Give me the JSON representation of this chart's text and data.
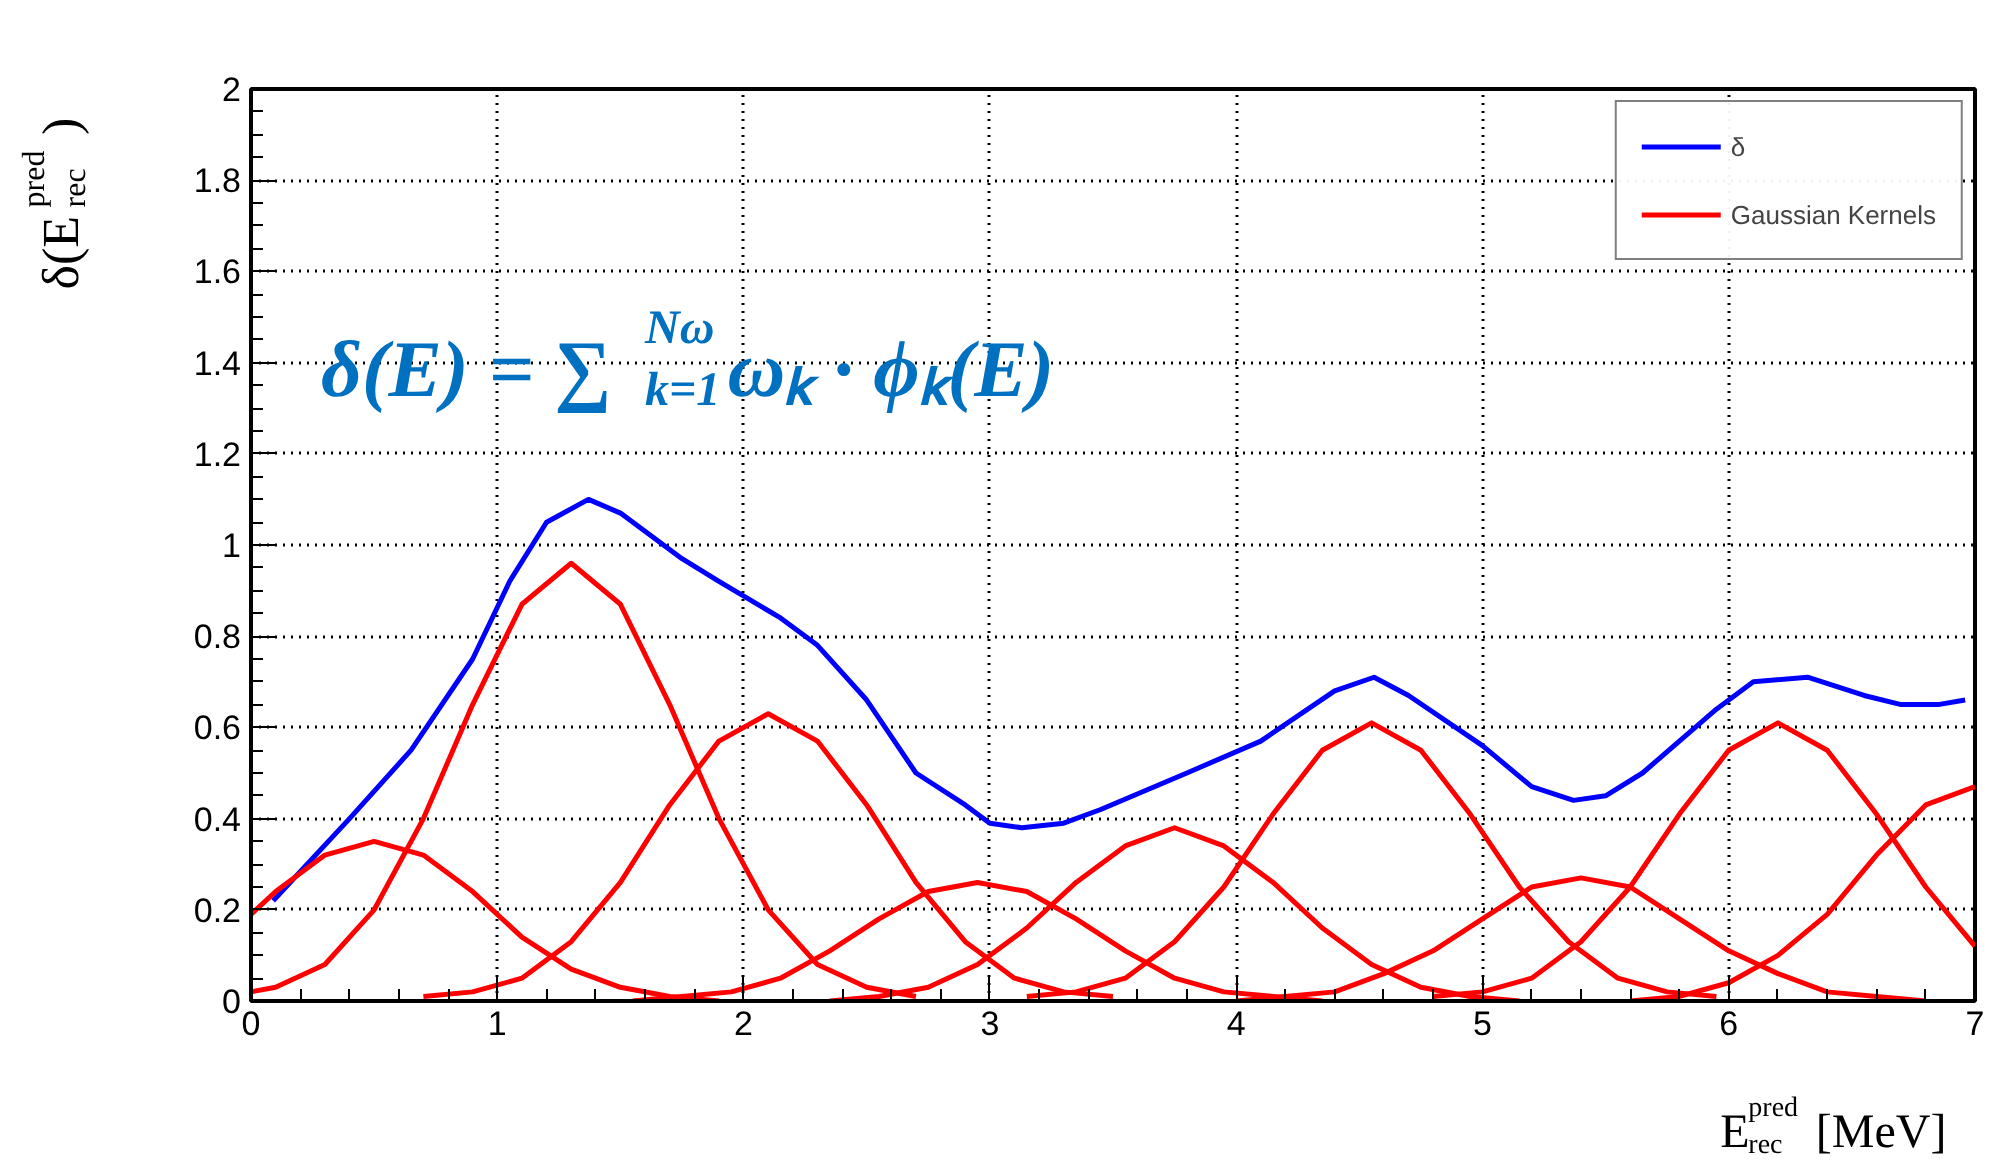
{
  "chart_data": {
    "type": "line",
    "xlabel": "E$^{pred}$$_{rec}$ [MeV]",
    "ylabel": "δ(E$^{pred}$$_{rec}$)",
    "annotations": [
      "δ(E) = ∑$^{Nω}$$_{k=1}$ωₖ · ϕₖ(E)"
    ],
    "xlim": [
      0,
      7
    ],
    "ylim": [
      0,
      2
    ],
    "xticks": [
      0,
      1,
      2,
      3,
      4,
      5,
      6,
      7
    ],
    "yticks": [
      0,
      0.2,
      0.4,
      0.6,
      0.8,
      1,
      1.2,
      1.4,
      1.6,
      1.8,
      2
    ],
    "grid": true,
    "legend": "top right",
    "line_style": "solid",
    "marker": "none",
    "series": [
      {
        "name": "δ",
        "color": "#0000ff",
        "x": [
          0.09,
          0.4,
          0.65,
          0.9,
          1.05,
          1.2,
          1.37,
          1.5,
          1.75,
          1.9,
          2.15,
          2.3,
          2.5,
          2.7,
          2.9,
          3.0,
          3.13,
          3.3,
          3.45,
          3.8,
          4.1,
          4.4,
          4.56,
          4.7,
          5.0,
          5.2,
          5.37,
          5.5,
          5.65,
          5.95,
          6.1,
          6.32,
          6.55,
          6.7,
          6.85,
          6.96
        ],
        "values": [
          0.22,
          0.4,
          0.55,
          0.75,
          0.92,
          1.05,
          1.1,
          1.07,
          0.97,
          0.92,
          0.84,
          0.78,
          0.66,
          0.5,
          0.43,
          0.39,
          0.38,
          0.39,
          0.42,
          0.5,
          0.57,
          0.68,
          0.71,
          0.67,
          0.56,
          0.47,
          0.44,
          0.45,
          0.5,
          0.64,
          0.7,
          0.71,
          0.67,
          0.65,
          0.65,
          0.66
        ]
      },
      {
        "name": "Gaussian Kernels",
        "color": "#ff0000",
        "x": [
          0,
          0.1,
          0.3,
          0.5,
          0.7,
          0.9,
          1.1,
          1.3,
          1.5,
          1.7,
          1.9
        ],
        "values": [
          0.19,
          0.24,
          0.32,
          0.35,
          0.32,
          0.24,
          0.14,
          0.07,
          0.03,
          0.01,
          0.0
        ]
      },
      {
        "color": "#ff0000",
        "x": [
          0,
          0.1,
          0.3,
          0.5,
          0.7,
          0.9,
          1.1,
          1.3,
          1.5,
          1.7,
          1.9,
          2.1,
          2.3,
          2.5,
          2.7
        ],
        "values": [
          0.02,
          0.03,
          0.08,
          0.2,
          0.4,
          0.65,
          0.87,
          0.96,
          0.87,
          0.65,
          0.4,
          0.2,
          0.08,
          0.03,
          0.01
        ]
      },
      {
        "color": "#ff0000",
        "x": [
          0.7,
          0.9,
          1.1,
          1.3,
          1.5,
          1.7,
          1.9,
          2.1,
          2.3,
          2.5,
          2.7,
          2.9,
          3.1,
          3.3,
          3.5
        ],
        "values": [
          0.01,
          0.02,
          0.05,
          0.13,
          0.26,
          0.43,
          0.57,
          0.63,
          0.57,
          0.43,
          0.26,
          0.13,
          0.05,
          0.02,
          0.01
        ]
      },
      {
        "color": "#ff0000",
        "x": [
          1.55,
          1.75,
          1.95,
          2.15,
          2.35,
          2.55,
          2.75,
          2.95,
          3.15,
          3.35,
          3.55,
          3.75,
          3.95,
          4.15,
          4.35
        ],
        "values": [
          0.0,
          0.01,
          0.02,
          0.05,
          0.11,
          0.18,
          0.24,
          0.26,
          0.24,
          0.18,
          0.11,
          0.05,
          0.02,
          0.01,
          0.0
        ]
      },
      {
        "color": "#ff0000",
        "x": [
          2.35,
          2.55,
          2.75,
          2.95,
          3.15,
          3.35,
          3.55,
          3.75,
          3.95,
          4.15,
          4.35,
          4.55,
          4.75,
          4.95,
          5.15
        ],
        "values": [
          0.0,
          0.01,
          0.03,
          0.08,
          0.16,
          0.26,
          0.34,
          0.38,
          0.34,
          0.26,
          0.16,
          0.08,
          0.03,
          0.01,
          0.0
        ]
      },
      {
        "color": "#ff0000",
        "x": [
          3.15,
          3.35,
          3.55,
          3.75,
          3.95,
          4.15,
          4.35,
          4.55,
          4.75,
          4.95,
          5.15,
          5.35,
          5.55,
          5.75,
          5.95
        ],
        "values": [
          0.01,
          0.02,
          0.05,
          0.13,
          0.25,
          0.41,
          0.55,
          0.61,
          0.55,
          0.41,
          0.25,
          0.13,
          0.05,
          0.02,
          0.01
        ]
      },
      {
        "color": "#ff0000",
        "x": [
          4.0,
          4.2,
          4.4,
          4.6,
          4.8,
          5.0,
          5.2,
          5.4,
          5.6,
          5.8,
          6.0,
          6.2,
          6.4,
          6.6,
          6.8
        ],
        "values": [
          0.0,
          0.01,
          0.02,
          0.06,
          0.11,
          0.18,
          0.25,
          0.27,
          0.25,
          0.18,
          0.11,
          0.06,
          0.02,
          0.01,
          0.0
        ]
      },
      {
        "color": "#ff0000",
        "x": [
          4.8,
          5.0,
          5.2,
          5.4,
          5.6,
          5.8,
          6.0,
          6.2,
          6.4,
          6.6,
          6.8,
          7.0
        ],
        "values": [
          0.01,
          0.02,
          0.05,
          0.13,
          0.25,
          0.41,
          0.55,
          0.61,
          0.55,
          0.41,
          0.25,
          0.12
        ]
      },
      {
        "color": "#ff0000",
        "x": [
          5.6,
          5.8,
          6.0,
          6.2,
          6.4,
          6.6,
          6.8,
          7.0
        ],
        "values": [
          0.0,
          0.01,
          0.04,
          0.1,
          0.19,
          0.32,
          0.43,
          0.47
        ]
      }
    ]
  }
}
